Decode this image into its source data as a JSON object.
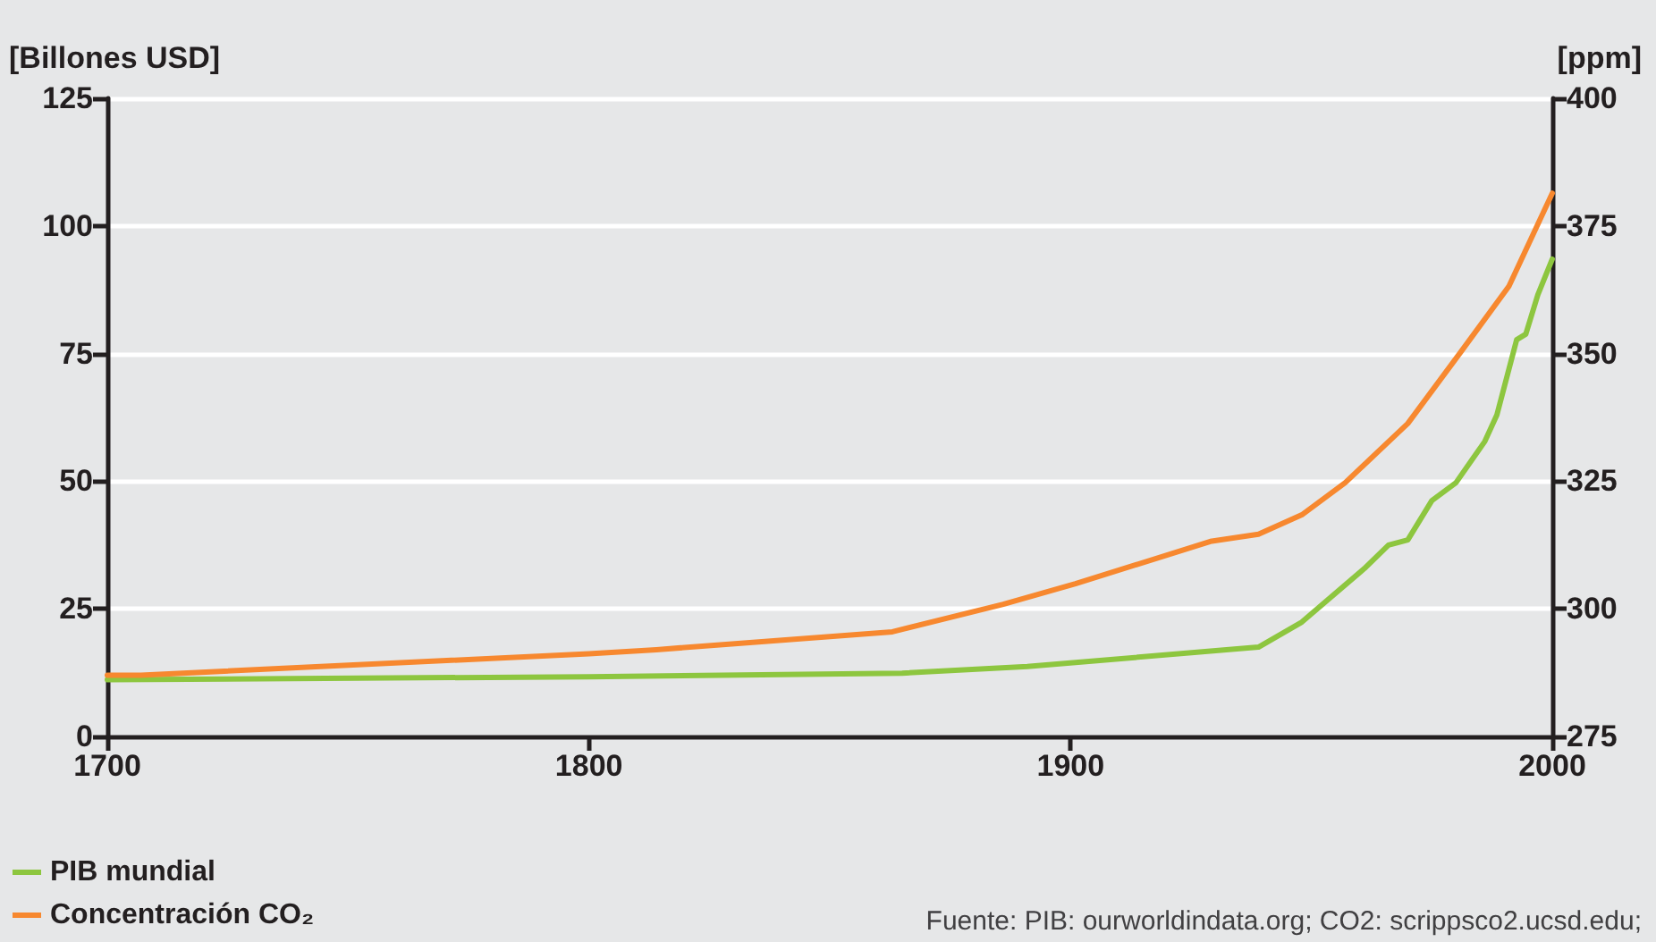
{
  "chart_data": {
    "type": "line",
    "ylabel": "[Billones USD]",
    "y2label": "[ppm]",
    "xlim": [
      1700,
      2000
    ],
    "xticks": [
      1700,
      1800,
      1900,
      2000
    ],
    "ylim": [
      0,
      125
    ],
    "yticks": [
      0,
      25,
      50,
      75,
      100,
      125
    ],
    "y2lim": [
      275,
      400
    ],
    "y2ticks": [
      275,
      300,
      325,
      350,
      375,
      400
    ],
    "grid": "y",
    "legend": "bottom left",
    "marker": "none",
    "line_style": "solid",
    "annotations": [
      "Fuente: PIB: ourworldindata.org; CO2: scrippsco2.ucsd.edu;"
    ],
    "series": [
      {
        "name": "PIB mundial",
        "color": "#8dc63f",
        "x": [
          1700,
          1800,
          1865,
          1891,
          1939,
          1948,
          1961,
          1966,
          1970,
          1975,
          1980,
          1986,
          1988.5,
          1992.6,
          1994.5,
          1997,
          2000
        ],
        "values": [
          11.1,
          11.7,
          12.4,
          13.7,
          17.5,
          22.4,
          32.9,
          37.5,
          38.5,
          46.2,
          49.7,
          57.8,
          63,
          77.7,
          78.8,
          86.5,
          93.5
        ]
      },
      {
        "name": "Concentración CO₂",
        "color": "#f7882f",
        "axis": "y2",
        "x": [
          1700,
          1707,
          1800,
          1814,
          1863,
          1886,
          1901,
          1929,
          1939,
          1948,
          1957,
          1970,
          1981,
          1991,
          2000
        ],
        "values": [
          287,
          287,
          291.2,
          292,
          295.5,
          300.9,
          304.9,
          313.2,
          314.6,
          318.4,
          324.7,
          336.3,
          350.3,
          363.2,
          381.4
        ]
      }
    ]
  }
}
